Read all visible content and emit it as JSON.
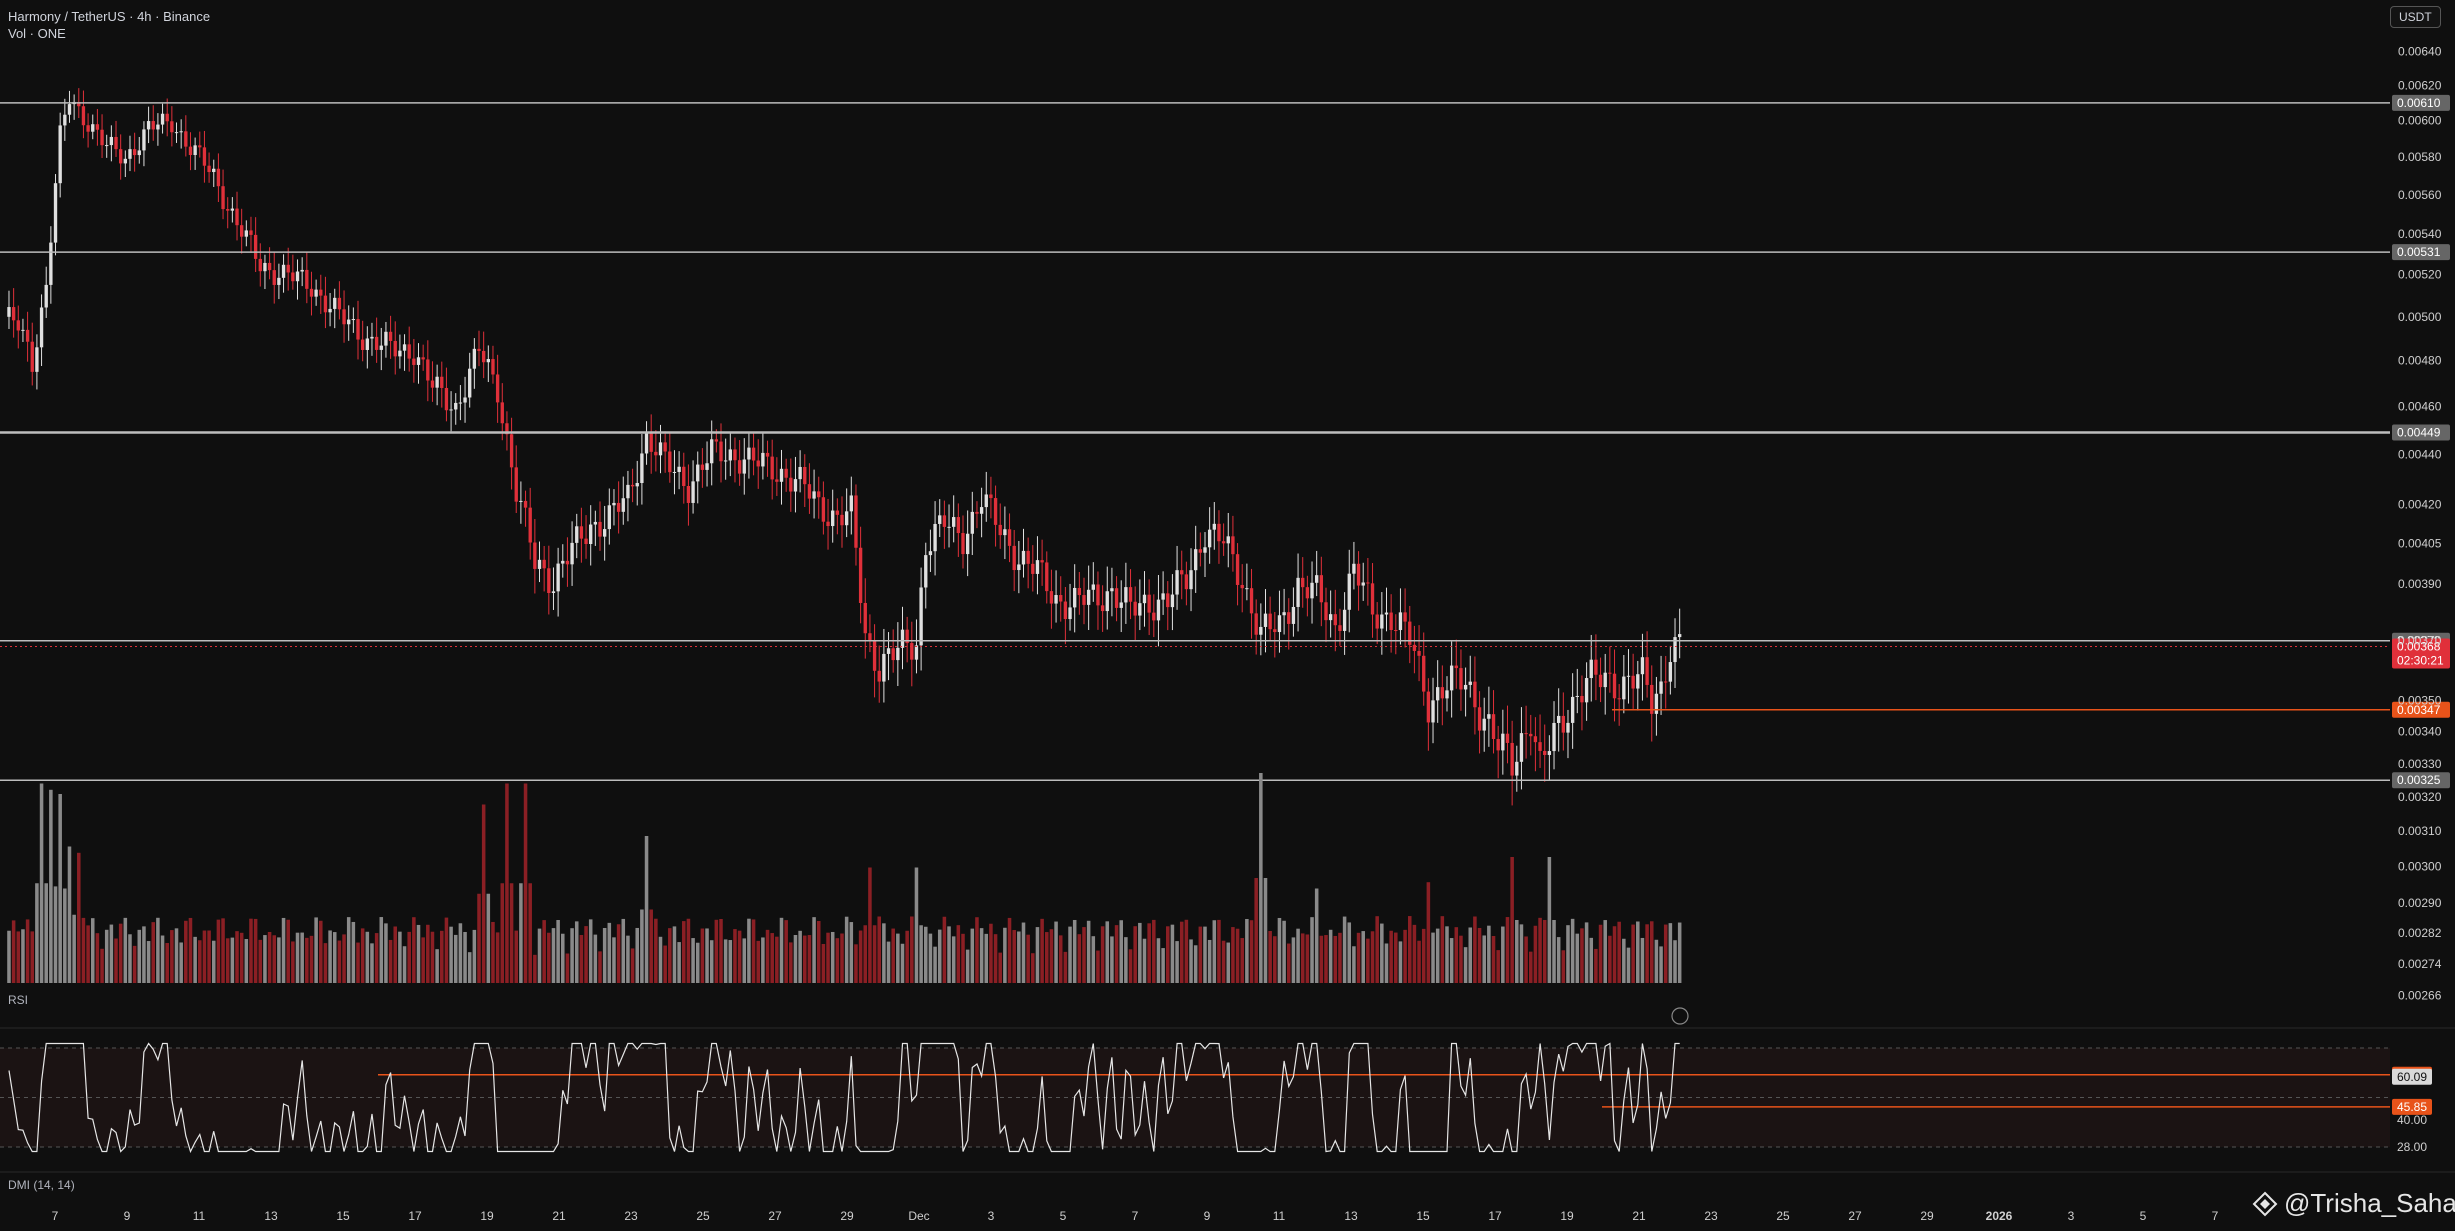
{
  "header": {
    "symbol_line": "Harmony / TetherUS · 4h · Binance",
    "volume_label": "Vol · ONE",
    "currency_button": "USDT"
  },
  "panes": {
    "rsi_label": "RSI",
    "dmi_label": "DMI (14, 14)"
  },
  "watermark": {
    "text": "@Trisha_Saha",
    "icon": "tradingview-diamond-icon"
  },
  "colors": {
    "up": "#e0e0e0",
    "down": "#e0303a",
    "vol_up": "#8a8a8a",
    "vol_down": "#8b1f24",
    "level_line": "#bdbdbd",
    "orange": "#e8531a",
    "rsi_line": "#e6e6e6",
    "rsi_band": "#1b1313",
    "background": "#0f0f0f"
  },
  "chart_data": {
    "type": "candlestick",
    "title": "Harmony / TetherUS · 4h · Binance",
    "ylim": [
      0.00262,
      0.00654
    ],
    "y_ticks": [
      "0.00640",
      "0.00620",
      "0.00600",
      "0.00580",
      "0.00560",
      "0.00540",
      "0.00520",
      "0.00500",
      "0.00480",
      "0.00460",
      "0.00440",
      "0.00420",
      "0.00405",
      "0.00390",
      "0.00370",
      "0.00350",
      "0.00340",
      "0.00330",
      "0.00320",
      "0.00310",
      "0.00300",
      "0.00290",
      "0.00282",
      "0.00274",
      "0.00266"
    ],
    "x_ticks": [
      "7",
      "9",
      "11",
      "13",
      "15",
      "17",
      "19",
      "21",
      "23",
      "25",
      "27",
      "29",
      "Dec",
      "3",
      "5",
      "7",
      "9",
      "11",
      "13",
      "15",
      "17",
      "19",
      "21",
      "23",
      "25",
      "27",
      "29",
      "2026",
      "3",
      "5",
      "7"
    ],
    "last_price": "0.00368",
    "countdown": "02:30:21",
    "horizontal_levels": [
      {
        "value": 0.0061,
        "label": "0.00610"
      },
      {
        "value": 0.00531,
        "label": "0.00531"
      },
      {
        "value": 0.00449,
        "label": "0.00449"
      },
      {
        "value": 0.0037,
        "label": "0.00370"
      },
      {
        "value": 0.00325,
        "label": "0.00325"
      }
    ],
    "orange_level": {
      "value": 0.00347,
      "label": "0.00347"
    },
    "anchors": [
      [
        0,
        0.005
      ],
      [
        3,
        0.00495
      ],
      [
        6,
        0.0048
      ],
      [
        9,
        0.00515
      ],
      [
        12,
        0.0059
      ],
      [
        14,
        0.00612
      ],
      [
        18,
        0.006
      ],
      [
        22,
        0.00585
      ],
      [
        26,
        0.0058
      ],
      [
        31,
        0.00595
      ],
      [
        36,
        0.006
      ],
      [
        40,
        0.00585
      ],
      [
        45,
        0.0057
      ],
      [
        50,
        0.00545
      ],
      [
        55,
        0.00525
      ],
      [
        60,
        0.0052
      ],
      [
        66,
        0.00515
      ],
      [
        72,
        0.005
      ],
      [
        78,
        0.0049
      ],
      [
        83,
        0.00485
      ],
      [
        88,
        0.00485
      ],
      [
        92,
        0.00468
      ],
      [
        97,
        0.0046
      ],
      [
        102,
        0.00484
      ],
      [
        106,
        0.00468
      ],
      [
        110,
        0.00425
      ],
      [
        114,
        0.00398
      ],
      [
        118,
        0.00392
      ],
      [
        122,
        0.00402
      ],
      [
        126,
        0.00412
      ],
      [
        130,
        0.00415
      ],
      [
        134,
        0.00422
      ],
      [
        138,
        0.00448
      ],
      [
        142,
        0.00436
      ],
      [
        147,
        0.00428
      ],
      [
        152,
        0.0044
      ],
      [
        157,
        0.0044
      ],
      [
        162,
        0.00436
      ],
      [
        167,
        0.00433
      ],
      [
        171,
        0.00428
      ],
      [
        175,
        0.0042
      ],
      [
        179,
        0.00415
      ],
      [
        182,
        0.00416
      ],
      [
        185,
        0.00372
      ],
      [
        188,
        0.00362
      ],
      [
        192,
        0.00366
      ],
      [
        196,
        0.0037
      ],
      [
        198,
        0.00405
      ],
      [
        202,
        0.00412
      ],
      [
        206,
        0.00408
      ],
      [
        210,
        0.00422
      ],
      [
        214,
        0.0041
      ],
      [
        218,
        0.004
      ],
      [
        222,
        0.00394
      ],
      [
        226,
        0.00385
      ],
      [
        230,
        0.00383
      ],
      [
        234,
        0.00385
      ],
      [
        238,
        0.00388
      ],
      [
        242,
        0.0038
      ],
      [
        246,
        0.00384
      ],
      [
        250,
        0.00384
      ],
      [
        254,
        0.00392
      ],
      [
        258,
        0.0041
      ],
      [
        262,
        0.00405
      ],
      [
        266,
        0.00392
      ],
      [
        270,
        0.00372
      ],
      [
        274,
        0.00375
      ],
      [
        278,
        0.0039
      ],
      [
        282,
        0.00386
      ],
      [
        286,
        0.00375
      ],
      [
        290,
        0.00395
      ],
      [
        294,
        0.0038
      ],
      [
        298,
        0.00379
      ],
      [
        302,
        0.0037
      ],
      [
        306,
        0.0035
      ],
      [
        310,
        0.00355
      ],
      [
        314,
        0.00356
      ],
      [
        318,
        0.00345
      ],
      [
        321,
        0.00335
      ],
      [
        324,
        0.0033
      ],
      [
        326,
        0.00338
      ],
      [
        328,
        0.00345
      ],
      [
        330,
        0.00328
      ],
      [
        332,
        0.00335
      ],
      [
        336,
        0.00348
      ],
      [
        340,
        0.00356
      ],
      [
        344,
        0.00357
      ],
      [
        348,
        0.00356
      ],
      [
        352,
        0.00357
      ],
      [
        354,
        0.0035
      ],
      [
        356,
        0.00355
      ],
      [
        358,
        0.00368
      ],
      [
        360,
        0.00368
      ]
    ],
    "volume_peaks": [
      [
        8,
        0.95
      ],
      [
        10,
        0.92
      ],
      [
        12,
        0.9
      ],
      [
        14,
        0.65
      ],
      [
        16,
        0.62
      ],
      [
        103,
        0.85
      ],
      [
        108,
        0.95
      ],
      [
        112,
        0.95
      ],
      [
        138,
        0.7
      ],
      [
        186,
        0.55
      ],
      [
        196,
        0.55
      ],
      [
        270,
        1.0
      ],
      [
        282,
        0.45
      ],
      [
        306,
        0.48
      ],
      [
        324,
        0.6
      ],
      [
        332,
        0.6
      ]
    ],
    "rsi": {
      "levels": [
        "60.10",
        "60.09",
        "45.85",
        "40.00",
        "28.00"
      ],
      "upper_line": 60.1,
      "lower_line": 45.85,
      "band": [
        28,
        72
      ]
    }
  }
}
